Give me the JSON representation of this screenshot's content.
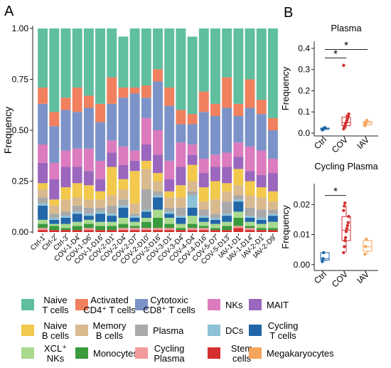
{
  "panel_a_label": "A",
  "panel_b_label": "B",
  "colors": {
    "Naive T cells": "#5fbf9f",
    "Activated CD4+ T cells": "#f0805e",
    "Cytotoxic CD8+ T cells": "#7b93c8",
    "NKs": "#dc7bbe",
    "MAIT": "#9b66bd",
    "Naive B cells": "#f2c94c",
    "Memory B cells": "#d9b98e",
    "Plasma": "#a9a9a9",
    "DCs": "#8dc2d8",
    "Cycling T cells": "#2166a8",
    "XCL+ NKs": "#a9d98f",
    "Monocytes": "#3a9a3c",
    "Cycling Plasma": "#f29a9b",
    "Stem cells": "#d32f2f",
    "Megakaryocytes": "#f5a55c"
  },
  "chart_data": [
    {
      "type": "bar",
      "stacked": true,
      "ylabel": "Frequency",
      "ylim": [
        0,
        1
      ],
      "yticks": [
        "0.00",
        "0.25",
        "0.50",
        "0.75",
        "1.00"
      ],
      "categories": [
        "Ctrl-1",
        "Ctrl-2",
        "Ctrl-3",
        "COV-1-D4",
        "COV-1-D6",
        "COV-1-D16",
        "COV-2-D1",
        "COV-2-D4",
        "COV-2-D7",
        "COV-2-D10",
        "COV-2-D16",
        "COV-3-D1",
        "COV-3-D4",
        "COV-4-D4",
        "COV-4-D16",
        "COV-5-D7",
        "COV-5-D13",
        "IAV-1-D1",
        "IAV-1-D14",
        "IAV-2-D1",
        "IAV-2-D9"
      ],
      "series": [
        {
          "name": "Stem cells",
          "values": [
            0.01,
            0.01,
            0.01,
            0.01,
            0.01,
            0.01,
            0.01,
            0.01,
            0.01,
            0.01,
            0.01,
            0.01,
            0.01,
            0.01,
            0.01,
            0.01,
            0.01,
            0.02,
            0.01,
            0.01,
            0.01
          ]
        },
        {
          "name": "Cycling Plasma",
          "values": [
            0.01,
            0.0,
            0.0,
            0.0,
            0.01,
            0.0,
            0.0,
            0.01,
            0.01,
            0.01,
            0.01,
            0.01,
            0.0,
            0.01,
            0.01,
            0.0,
            0.0,
            0.01,
            0.01,
            0.0,
            0.0
          ]
        },
        {
          "name": "Monocytes",
          "values": [
            0.02,
            0.02,
            0.01,
            0.02,
            0.02,
            0.02,
            0.02,
            0.02,
            0.01,
            0.03,
            0.05,
            0.02,
            0.01,
            0.02,
            0.01,
            0.01,
            0.02,
            0.04,
            0.01,
            0.01,
            0.01
          ]
        },
        {
          "name": "XCL+ NKs",
          "values": [
            0.02,
            0.01,
            0.02,
            0.02,
            0.02,
            0.02,
            0.02,
            0.03,
            0.02,
            0.02,
            0.04,
            0.03,
            0.02,
            0.04,
            0.02,
            0.02,
            0.02,
            0.03,
            0.02,
            0.02,
            0.03
          ]
        },
        {
          "name": "Cycling T cells",
          "values": [
            0.07,
            0.02,
            0.03,
            0.04,
            0.02,
            0.04,
            0.03,
            0.05,
            0.02,
            0.03,
            0.06,
            0.02,
            0.03,
            0.04,
            0.02,
            0.02,
            0.03,
            0.05,
            0.02,
            0.02,
            0.03
          ]
        },
        {
          "name": "DCs",
          "values": [
            0.01,
            0.01,
            0.01,
            0.01,
            0.01,
            0.01,
            0.01,
            0.01,
            0.01,
            0.01,
            0.01,
            0.01,
            0.01,
            0.06,
            0.01,
            0.01,
            0.01,
            0.01,
            0.01,
            0.01,
            0.01
          ]
        },
        {
          "name": "Plasma",
          "values": [
            0.03,
            0.02,
            0.02,
            0.03,
            0.03,
            0.02,
            0.04,
            0.03,
            0.01,
            0.1,
            0.02,
            0.02,
            0.04,
            0.02,
            0.03,
            0.02,
            0.06,
            0.02,
            0.04,
            0.04,
            0.02
          ]
        },
        {
          "name": "Memory B cells",
          "values": [
            0.04,
            0.04,
            0.06,
            0.04,
            0.04,
            0.04,
            0.05,
            0.05,
            0.05,
            0.1,
            0.05,
            0.05,
            0.05,
            0.05,
            0.04,
            0.07,
            0.05,
            0.05,
            0.06,
            0.06,
            0.04
          ]
        },
        {
          "name": "Megakaryocytes",
          "values": [
            0.0,
            0.0,
            0.0,
            0.0,
            0.0,
            0.0,
            0.0,
            0.0,
            0.0,
            0.0,
            0.0,
            0.0,
            0.0,
            0.0,
            0.0,
            0.0,
            0.0,
            0.0,
            0.0,
            0.0,
            0.0
          ]
        },
        {
          "name": "Naive B cells",
          "values": [
            0.03,
            0.03,
            0.06,
            0.07,
            0.07,
            0.04,
            0.14,
            0.05,
            0.16,
            0.04,
            0.04,
            0.03,
            0.06,
            0.08,
            0.07,
            0.09,
            0.04,
            0.08,
            0.07,
            0.05,
            0.05
          ]
        },
        {
          "name": "MAIT",
          "values": [
            0.1,
            0.1,
            0.1,
            0.08,
            0.07,
            0.06,
            0.07,
            0.07,
            0.05,
            0.08,
            0.09,
            0.06,
            0.09,
            0.05,
            0.07,
            0.07,
            0.08,
            0.06,
            0.05,
            0.06,
            0.09
          ]
        },
        {
          "name": "NKs",
          "values": [
            0.09,
            0.08,
            0.08,
            0.09,
            0.11,
            0.09,
            0.06,
            0.09,
            0.05,
            0.13,
            0.12,
            0.09,
            0.12,
            0.05,
            0.07,
            0.06,
            0.07,
            0.07,
            0.12,
            0.12,
            0.07
          ]
        },
        {
          "name": "Cytotoxic CD8+ T cells",
          "values": [
            0.2,
            0.18,
            0.2,
            0.18,
            0.2,
            0.19,
            0.18,
            0.24,
            0.28,
            0.1,
            0.24,
            0.27,
            0.09,
            0.1,
            0.23,
            0.19,
            0.22,
            0.13,
            0.19,
            0.18,
            0.14
          ]
        },
        {
          "name": "Activated CD4+ T cells",
          "values": [
            0.08,
            0.07,
            0.06,
            0.12,
            0.06,
            0.09,
            0.13,
            0.05,
            0.03,
            0.06,
            0.06,
            0.09,
            0.07,
            0.05,
            0.1,
            0.06,
            0.15,
            0.06,
            0.14,
            0.07,
            0.06
          ]
        },
        {
          "name": "Naive T cells",
          "values": [
            0.29,
            0.41,
            0.34,
            0.29,
            0.33,
            0.37,
            0.24,
            0.25,
            0.29,
            0.28,
            0.2,
            0.29,
            0.4,
            0.38,
            0.31,
            0.37,
            0.24,
            0.37,
            0.25,
            0.35,
            0.44
          ]
        }
      ]
    },
    {
      "type": "box",
      "title": "Plasma",
      "ylabel": "Frequency",
      "ylim": [
        0,
        0.42
      ],
      "yticks": [
        "0.0",
        "0.1",
        "0.2",
        "0.3",
        "0.4"
      ],
      "categories": [
        "Ctrl",
        "COV",
        "IAV"
      ],
      "series": [
        {
          "name": "Ctrl",
          "color": "#2166a8",
          "box": [
            0.015,
            0.018,
            0.02,
            0.024,
            0.026
          ],
          "points": [
            0.015,
            0.018,
            0.02,
            0.024,
            0.026
          ]
        },
        {
          "name": "COV",
          "color": "#d32f2f",
          "box": [
            0.02,
            0.035,
            0.05,
            0.075,
            0.09
          ],
          "points": [
            0.02,
            0.03,
            0.035,
            0.045,
            0.05,
            0.06,
            0.07,
            0.08,
            0.09,
            0.32
          ]
        },
        {
          "name": "IAV",
          "color": "#f5a55c",
          "box": [
            0.035,
            0.04,
            0.05,
            0.055,
            0.06
          ],
          "points": [
            0.035,
            0.045,
            0.055,
            0.06
          ]
        }
      ],
      "significance": [
        {
          "label": "*",
          "from": "Ctrl",
          "to": "COV",
          "y": 0.355
        },
        {
          "label": "*",
          "from": "Ctrl",
          "to": "IAV",
          "y": 0.395
        }
      ]
    },
    {
      "type": "box",
      "title": "Cycling Plasma",
      "ylabel": "Frequency",
      "ylim": [
        -0.001,
        0.026
      ],
      "yticks": [
        "0.00",
        "0.01",
        "0.02"
      ],
      "categories": [
        "Ctrl",
        "COV",
        "IAV"
      ],
      "series": [
        {
          "name": "Ctrl",
          "color": "#2166a8",
          "box": [
            0.001,
            0.0015,
            0.002,
            0.004,
            0.004
          ],
          "points": [
            0.001,
            0.002,
            0.004
          ]
        },
        {
          "name": "COV",
          "color": "#d32f2f",
          "box": [
            0.004,
            0.008,
            0.0115,
            0.016,
            0.0195
          ],
          "points": [
            0.004,
            0.006,
            0.008,
            0.009,
            0.011,
            0.012,
            0.013,
            0.014,
            0.016,
            0.018,
            0.0195,
            0.0205
          ]
        },
        {
          "name": "IAV",
          "color": "#f5a55c",
          "box": [
            0.0035,
            0.0045,
            0.006,
            0.008,
            0.0085
          ],
          "points": [
            0.0035,
            0.006,
            0.0085
          ]
        }
      ],
      "significance": [
        {
          "label": "*",
          "from": "Ctrl",
          "to": "COV",
          "y": 0.023
        }
      ]
    }
  ],
  "legend": [
    {
      "key": "Naive T cells",
      "lines": [
        "Naive",
        "T cells"
      ]
    },
    {
      "key": "Activated CD4+ T cells",
      "lines": [
        "Activated",
        "CD4⁺ T cells"
      ]
    },
    {
      "key": "Cytotoxic CD8+ T cells",
      "lines": [
        "Cytotoxic",
        "CD8⁺ T cells"
      ]
    },
    {
      "key": "NKs",
      "lines": [
        "NKs"
      ]
    },
    {
      "key": "MAIT",
      "lines": [
        "MAIT"
      ]
    },
    {
      "key": "Naive B cells",
      "lines": [
        "Naive",
        "B cells"
      ]
    },
    {
      "key": "Memory B cells",
      "lines": [
        "Memory",
        "B cells"
      ]
    },
    {
      "key": "Plasma",
      "lines": [
        "Plasma"
      ]
    },
    {
      "key": "DCs",
      "lines": [
        "DCs"
      ]
    },
    {
      "key": "Cycling T cells",
      "lines": [
        "Cycling",
        "T cells"
      ]
    },
    {
      "key": "XCL+ NKs",
      "lines": [
        "XCL⁺",
        "NKs"
      ]
    },
    {
      "key": "Monocytes",
      "lines": [
        "Monocytes"
      ]
    },
    {
      "key": "Cycling Plasma",
      "lines": [
        "Cycling",
        "Plasma"
      ]
    },
    {
      "key": "Stem cells",
      "lines": [
        "Stem",
        "cells"
      ]
    },
    {
      "key": "Megakaryocytes",
      "lines": [
        "Megakaryocytes"
      ]
    }
  ]
}
